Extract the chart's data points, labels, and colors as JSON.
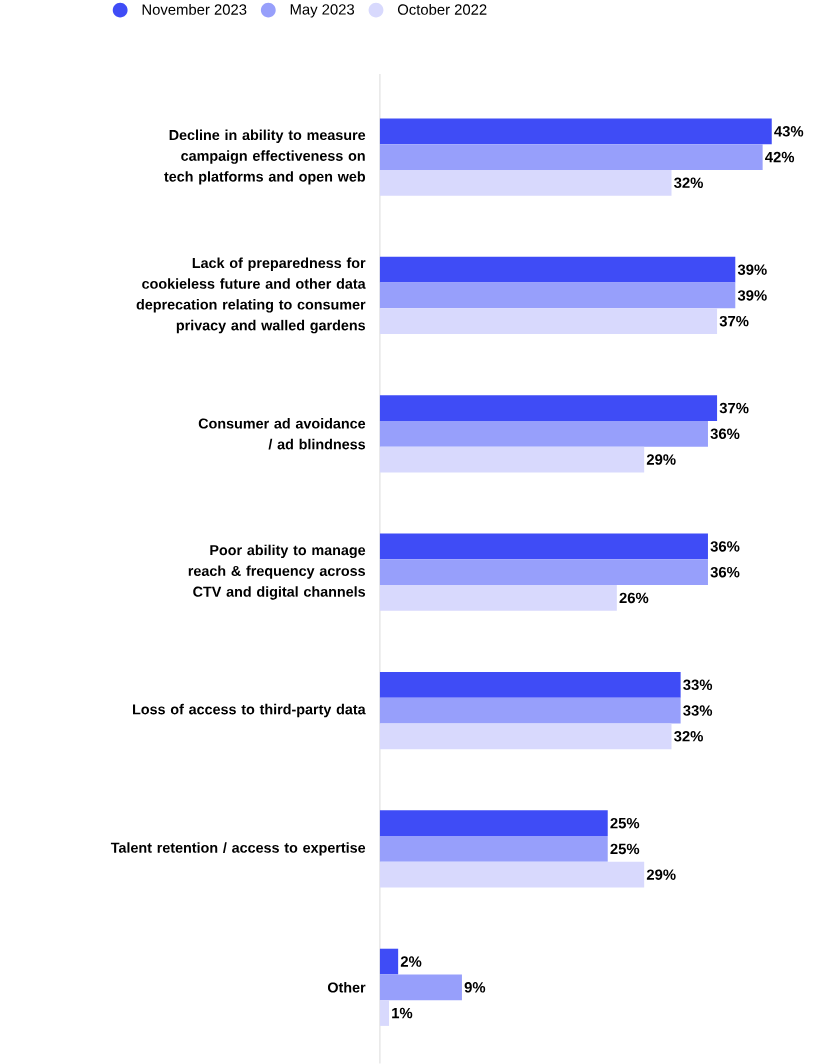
{
  "chart_data": {
    "type": "bar",
    "orientation": "horizontal",
    "categories": [
      "Decline in ability to measure campaign effectiveness on tech platforms and open web",
      "Lack of preparedness for cookieless future and other data deprecation relating to consumer privacy and walled gardens",
      "Consumer ad avoidance / ad blindness",
      "Poor ability to manage reach & frequency across CTV and digital channels",
      "Loss of access to third-party data",
      "Talent retention / access to expertise",
      "Other"
    ],
    "series": [
      {
        "name": "November 2023",
        "color": "#3f4cf6",
        "values": [
          43,
          39,
          37,
          36,
          33,
          25,
          2
        ],
        "value_labels": [
          "43%",
          "39%",
          "37%",
          "36%",
          "33%",
          "25%",
          "2%"
        ]
      },
      {
        "name": "May 2023",
        "color": "#979ffb",
        "values": [
          42,
          39,
          36,
          36,
          33,
          25,
          9
        ],
        "value_labels": [
          "42%",
          "39%",
          "36%",
          "36%",
          "33%",
          "25%",
          "9%"
        ]
      },
      {
        "name": "October 2022",
        "color": "#d8d9fd",
        "values": [
          32,
          37,
          29,
          26,
          32,
          29,
          1
        ],
        "value_labels": [
          "32%",
          "37%",
          "29%",
          "26%",
          "32%",
          "29%",
          "1%"
        ]
      }
    ],
    "legend": "top"
  }
}
